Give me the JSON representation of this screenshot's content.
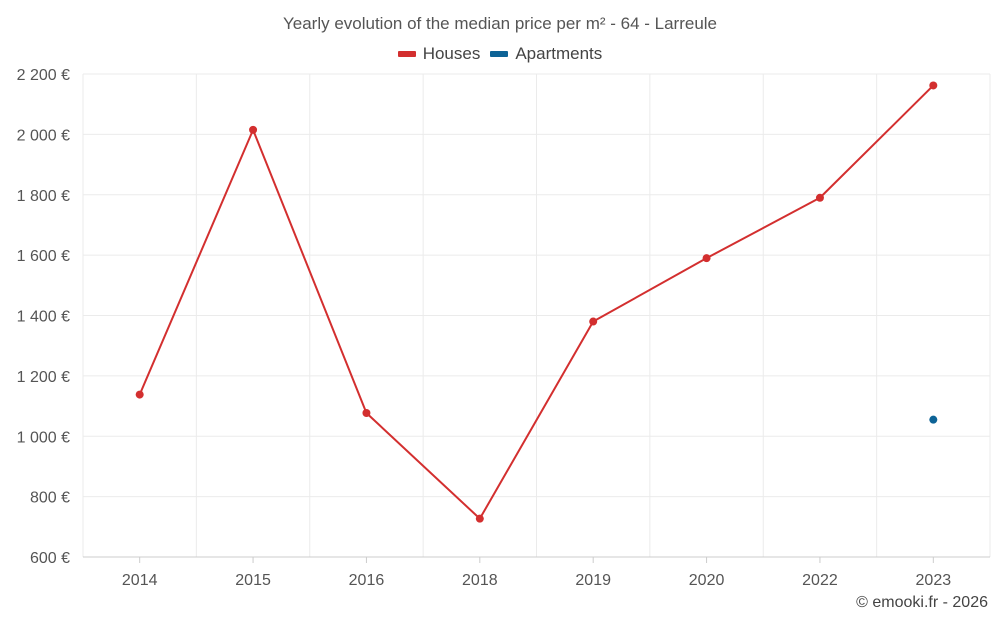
{
  "chart_data": {
    "type": "line",
    "title": "Yearly evolution of the median price per m² - 64 - Larreule",
    "categories": [
      "2014",
      "2015",
      "2016",
      "2018",
      "2019",
      "2020",
      "2022",
      "2023"
    ],
    "series": [
      {
        "name": "Houses",
        "color": "#d32f2f",
        "values": [
          1138,
          2015,
          1077,
          727,
          1380,
          1590,
          1790,
          2162
        ]
      },
      {
        "name": "Apartments",
        "color": "#0d6396",
        "values": [
          null,
          null,
          null,
          null,
          null,
          null,
          null,
          1055
        ]
      }
    ],
    "y_ticks": [
      600,
      800,
      1000,
      1200,
      1400,
      1600,
      1800,
      2000,
      2200
    ],
    "y_tick_labels": [
      "600 €",
      "800 €",
      "1 000 €",
      "1 200 €",
      "1 400 €",
      "1 600 €",
      "1 800 €",
      "2 000 €",
      "2 200 €"
    ],
    "ylim": [
      600,
      2200
    ],
    "xlabel": "",
    "ylabel": "",
    "grid": true,
    "legend_position": "top-center"
  },
  "credit": "© emooki.fr - 2026"
}
